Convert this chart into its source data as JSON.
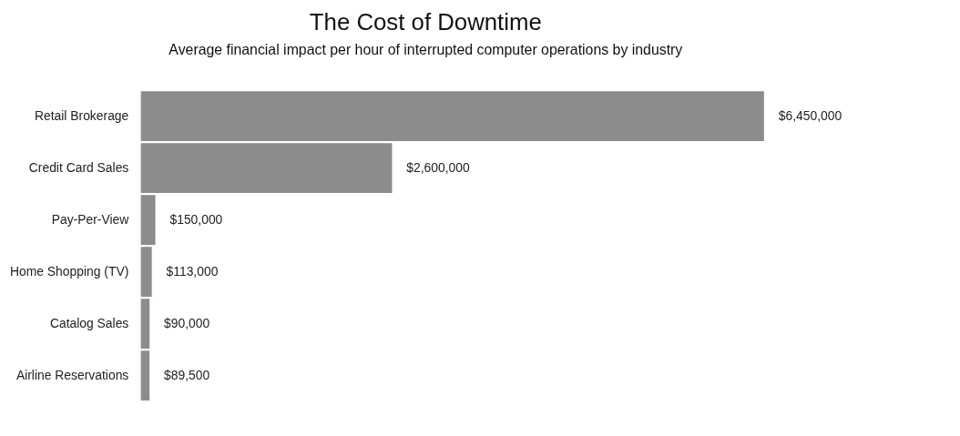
{
  "chart_data": {
    "type": "bar",
    "orientation": "horizontal",
    "title": "The Cost of Downtime",
    "subtitle": "Average financial impact per hour of interrupted computer operations by industry",
    "categories": [
      "Retail Brokerage",
      "Credit Card Sales",
      "Pay-Per-View",
      "Home Shopping (TV)",
      "Catalog Sales",
      "Airline Reservations"
    ],
    "values": [
      6450000,
      2600000,
      150000,
      113000,
      90000,
      89500
    ],
    "value_labels": [
      "$6,450,000",
      "$2,600,000",
      "$150,000",
      "$113,000",
      "$90,000",
      "$89,500"
    ],
    "color": "#8c8c8c"
  }
}
